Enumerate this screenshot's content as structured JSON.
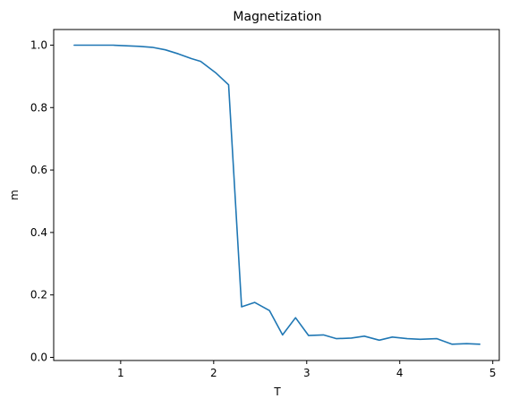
{
  "chart_data": {
    "type": "line",
    "title": "Magnetization",
    "xlabel": "T",
    "ylabel": "m",
    "xlim": [
      0.28,
      5.07
    ],
    "ylim": [
      -0.01,
      1.05
    ],
    "xticks": [
      1,
      2,
      3,
      4,
      5
    ],
    "yticks": [
      0.0,
      0.2,
      0.4,
      0.6,
      0.8,
      1.0
    ],
    "xtick_labels": [
      "1",
      "2",
      "3",
      "4",
      "5"
    ],
    "ytick_labels": [
      "0.0",
      "0.2",
      "0.4",
      "0.6",
      "0.8",
      "1.0"
    ],
    "grid": false,
    "line_color": "#1f77b4",
    "series": [
      {
        "x": [
          0.5,
          0.64,
          0.78,
          0.92,
          1.06,
          1.2,
          1.34,
          1.48,
          1.62,
          1.76,
          1.86,
          2.02,
          2.16,
          2.3,
          2.44,
          2.6,
          2.74,
          2.88,
          3.02,
          3.18,
          3.32,
          3.48,
          3.62,
          3.78,
          3.92,
          4.08,
          4.22,
          4.4,
          4.56,
          4.72,
          4.86
        ],
        "y": [
          1.0,
          1.0,
          1.0,
          1.0,
          0.998,
          0.996,
          0.993,
          0.985,
          0.972,
          0.957,
          0.948,
          0.912,
          0.873,
          0.162,
          0.176,
          0.15,
          0.072,
          0.127,
          0.07,
          0.072,
          0.06,
          0.062,
          0.068,
          0.055,
          0.065,
          0.06,
          0.058,
          0.06,
          0.042,
          0.044,
          0.042
        ]
      }
    ]
  }
}
